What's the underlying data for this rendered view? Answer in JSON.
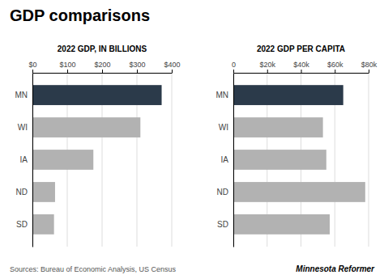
{
  "title": "GDP comparisons",
  "annotations": [
    "Sources: Bureau of Economic Analysis, US Census",
    "Minnesota Reformer"
  ],
  "chart_data": [
    {
      "type": "bar",
      "orientation": "horizontal",
      "subtitle": "2022 GDP, IN BILLIONS",
      "categories": [
        "MN",
        "WI",
        "IA",
        "ND",
        "SD"
      ],
      "values": [
        371,
        310,
        175,
        65,
        62
      ],
      "colors": [
        "#2b3a4a",
        "#b2b2b2",
        "#b2b2b2",
        "#b2b2b2",
        "#b2b2b2"
      ],
      "xlim": [
        0,
        400
      ],
      "xticks": [
        {
          "value": 0,
          "label": "$0"
        },
        {
          "value": 100,
          "label": "$100"
        },
        {
          "value": 200,
          "label": "$200"
        },
        {
          "value": 300,
          "label": "$300"
        },
        {
          "value": 400,
          "label": "$400"
        }
      ],
      "grid": true
    },
    {
      "type": "bar",
      "orientation": "horizontal",
      "subtitle": "2022 GDP PER CAPITA",
      "categories": [
        "MN",
        "WI",
        "IA",
        "ND",
        "SD"
      ],
      "values": [
        65000,
        53000,
        55000,
        78000,
        57000
      ],
      "colors": [
        "#2b3a4a",
        "#b2b2b2",
        "#b2b2b2",
        "#b2b2b2",
        "#b2b2b2"
      ],
      "xlim": [
        0,
        80000
      ],
      "xticks": [
        0,
        {
          "value": 20000,
          "label": "$20k"
        },
        {
          "value": 40000,
          "label": "$40k"
        },
        {
          "value": 60000,
          "label": "$60k"
        },
        {
          "value": 80000,
          "label": "$80k"
        }
      ],
      "grid": true
    }
  ]
}
